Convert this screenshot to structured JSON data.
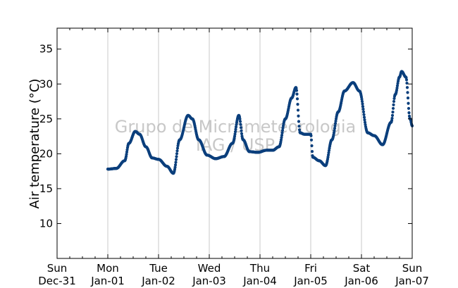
{
  "chart_data": {
    "type": "scatter",
    "title": "",
    "xlabel": "",
    "ylabel": "Air temperature (°C)",
    "ylim": [
      5,
      38
    ],
    "yticks": [
      10,
      15,
      20,
      25,
      30,
      35
    ],
    "xlim": [
      "Dec-31 00:00",
      "Jan-07 00:00"
    ],
    "xticks": [
      {
        "day": "Sun",
        "date": "Dec-31"
      },
      {
        "day": "Mon",
        "date": "Jan-01"
      },
      {
        "day": "Tue",
        "date": "Jan-02"
      },
      {
        "day": "Wed",
        "date": "Jan-03"
      },
      {
        "day": "Thu",
        "date": "Jan-04"
      },
      {
        "day": "Fri",
        "date": "Jan-05"
      },
      {
        "day": "Sat",
        "date": "Jan-06"
      },
      {
        "day": "Sun",
        "date": "Jan-07"
      }
    ],
    "grid": "vertical",
    "series_color": "#0b3f7c",
    "watermark": [
      "Grupo de Micrometeorologia",
      "IAG / USP"
    ],
    "series": [
      {
        "x": [
          "Jan-01 00:00",
          "Jan-01 04:00",
          "Jan-01 08:00",
          "Jan-01 10:00",
          "Jan-01 13:00",
          "Jan-01 15:00",
          "Jan-01 18:00",
          "Jan-01 21:00",
          "Jan-02 00:00",
          "Jan-02 04:00",
          "Jan-02 07:00",
          "Jan-02 10:00",
          "Jan-02 14:00",
          "Jan-02 16:00",
          "Jan-02 19:00",
          "Jan-02 23:00",
          "Jan-03 03:00",
          "Jan-03 07:00",
          "Jan-03 11:00",
          "Jan-03 14:00",
          "Jan-03 16:00",
          "Jan-03 19:00",
          "Jan-03 23:00",
          "Jan-04 03:00",
          "Jan-04 06:00",
          "Jan-04 09:00",
          "Jan-04 12:00",
          "Jan-04 15:00",
          "Jan-04 17:00",
          "Jan-04 19:00",
          "Jan-04 21:00",
          "Jan-05 00:00",
          "Jan-05 01:00",
          "Jan-05 04:00",
          "Jan-05 07:00",
          "Jan-05 10:00",
          "Jan-05 13:00",
          "Jan-05 16:00",
          "Jan-05 20:00",
          "Jan-05 23:00",
          "Jan-06 03:00",
          "Jan-06 06:00",
          "Jan-06 10:00",
          "Jan-06 14:00",
          "Jan-06 16:00",
          "Jan-06 18:00",
          "Jan-06 19:00",
          "Jan-06 21:00",
          "Jan-06 23:00",
          "Jan-07 00:00"
        ],
        "y": [
          17.8,
          17.9,
          19.0,
          21.5,
          23.2,
          22.8,
          21.0,
          19.4,
          19.2,
          18.2,
          17.2,
          22.0,
          25.5,
          25.0,
          22.0,
          19.8,
          19.3,
          19.6,
          21.5,
          25.5,
          22.0,
          20.3,
          20.2,
          20.5,
          20.5,
          21.0,
          25.0,
          28.0,
          29.5,
          23.0,
          22.8,
          22.8,
          19.5,
          19.0,
          18.3,
          22.0,
          26.0,
          29.0,
          30.2,
          29.0,
          23.0,
          22.6,
          21.3,
          24.5,
          28.5,
          31.0,
          31.8,
          31.0,
          25.0,
          24.0
        ]
      }
    ]
  }
}
